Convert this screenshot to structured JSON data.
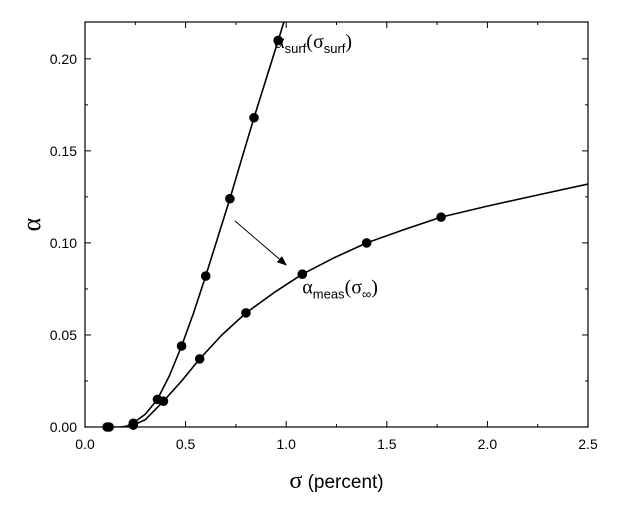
{
  "chart_data": {
    "type": "line",
    "xlabel": {
      "symbol": "σ",
      "text": " (percent)"
    },
    "ylabel": "α",
    "xlim": [
      0.0,
      2.5
    ],
    "ylim": [
      0.0,
      0.22
    ],
    "x_ticks": [
      0.0,
      0.5,
      1.0,
      1.5,
      2.0,
      2.5
    ],
    "x_tick_labels": [
      "0.0",
      "0.5",
      "1.0",
      "1.5",
      "2.0",
      "2.5"
    ],
    "y_ticks": [
      0.0,
      0.05,
      0.1,
      0.15,
      0.2
    ],
    "y_tick_labels": [
      "0.00",
      "0.05",
      "0.10",
      "0.15",
      "0.20"
    ],
    "grid": false,
    "legend": "none",
    "series": [
      {
        "key": "surf",
        "points": [
          [
            0.11,
            0.0
          ],
          [
            0.24,
            0.002
          ],
          [
            0.36,
            0.015
          ],
          [
            0.48,
            0.044
          ],
          [
            0.6,
            0.082
          ],
          [
            0.72,
            0.124
          ],
          [
            0.84,
            0.168
          ],
          [
            0.96,
            0.21
          ]
        ],
        "curve": [
          [
            0.1,
            0.0
          ],
          [
            0.15,
            0.0
          ],
          [
            0.2,
            0.0
          ],
          [
            0.25,
            0.003
          ],
          [
            0.3,
            0.007
          ],
          [
            0.36,
            0.015
          ],
          [
            0.42,
            0.028
          ],
          [
            0.48,
            0.044
          ],
          [
            0.54,
            0.062
          ],
          [
            0.6,
            0.082
          ],
          [
            0.66,
            0.103
          ],
          [
            0.72,
            0.124
          ],
          [
            0.78,
            0.146
          ],
          [
            0.84,
            0.168
          ],
          [
            0.9,
            0.189
          ],
          [
            0.96,
            0.21
          ],
          [
            1.0,
            0.224
          ]
        ]
      },
      {
        "key": "meas",
        "points": [
          [
            0.12,
            0.0
          ],
          [
            0.24,
            0.001
          ],
          [
            0.39,
            0.014
          ],
          [
            0.57,
            0.037
          ],
          [
            0.8,
            0.062
          ],
          [
            1.08,
            0.083
          ],
          [
            1.4,
            0.1
          ],
          [
            1.77,
            0.114
          ]
        ],
        "curve": [
          [
            0.18,
            0.0
          ],
          [
            0.24,
            0.001
          ],
          [
            0.3,
            0.004
          ],
          [
            0.39,
            0.014
          ],
          [
            0.48,
            0.025
          ],
          [
            0.57,
            0.037
          ],
          [
            0.68,
            0.05
          ],
          [
            0.8,
            0.062
          ],
          [
            0.94,
            0.073
          ],
          [
            1.08,
            0.083
          ],
          [
            1.24,
            0.092
          ],
          [
            1.4,
            0.1
          ],
          [
            1.58,
            0.107
          ],
          [
            1.77,
            0.114
          ],
          [
            2.0,
            0.12
          ],
          [
            2.25,
            0.126
          ],
          [
            2.5,
            0.132
          ]
        ]
      }
    ],
    "annotations": [
      {
        "name": "surf-label",
        "base": "α",
        "sub1": "surf",
        "mid": "(σ",
        "sub2": "surf",
        "end": ")",
        "anchor": [
          0.94,
          0.206
        ]
      },
      {
        "name": "meas-label",
        "base": "α",
        "sub1": "meas",
        "mid": "(σ",
        "sub2": "∞",
        "end": ")",
        "anchor": [
          1.08,
          0.0725
        ]
      }
    ],
    "arrow": {
      "from": [
        0.745,
        0.112
      ],
      "to": [
        1.0,
        0.088
      ]
    }
  }
}
